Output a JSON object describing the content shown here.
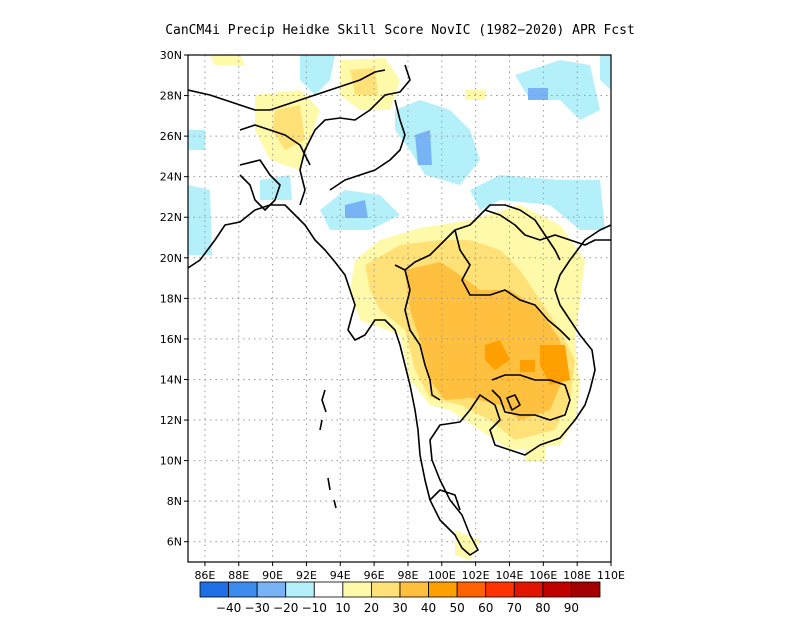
{
  "title": "CanCM4i Precip Heidke Skill Score NovIC (1982−2020) APR Fcst",
  "map": {
    "lon_range": [
      85,
      110
    ],
    "lat_range": [
      5,
      30
    ],
    "lat_labels": [
      "6N",
      "8N",
      "10N",
      "12N",
      "14N",
      "16N",
      "18N",
      "20N",
      "22N",
      "24N",
      "26N",
      "28N",
      "30N"
    ],
    "lon_labels": [
      "86E",
      "88E",
      "90E",
      "92E",
      "94E",
      "96E",
      "98E",
      "100E",
      "102E",
      "104E",
      "106E",
      "108E",
      "110E"
    ],
    "gridlines": true
  },
  "colorbar": {
    "labels": [
      "−40",
      "−30",
      "−20",
      "−10",
      "10",
      "20",
      "30",
      "40",
      "50",
      "60",
      "70",
      "80",
      "90"
    ],
    "colors": [
      "#1e6ee6",
      "#3c8cf0",
      "#78b4f5",
      "#b4f0fa",
      "#ffffff",
      "#fffaaa",
      "#ffe178",
      "#ffc040",
      "#ffa000",
      "#ff6000",
      "#ff3200",
      "#e11400",
      "#c00000",
      "#a50000"
    ]
  }
}
